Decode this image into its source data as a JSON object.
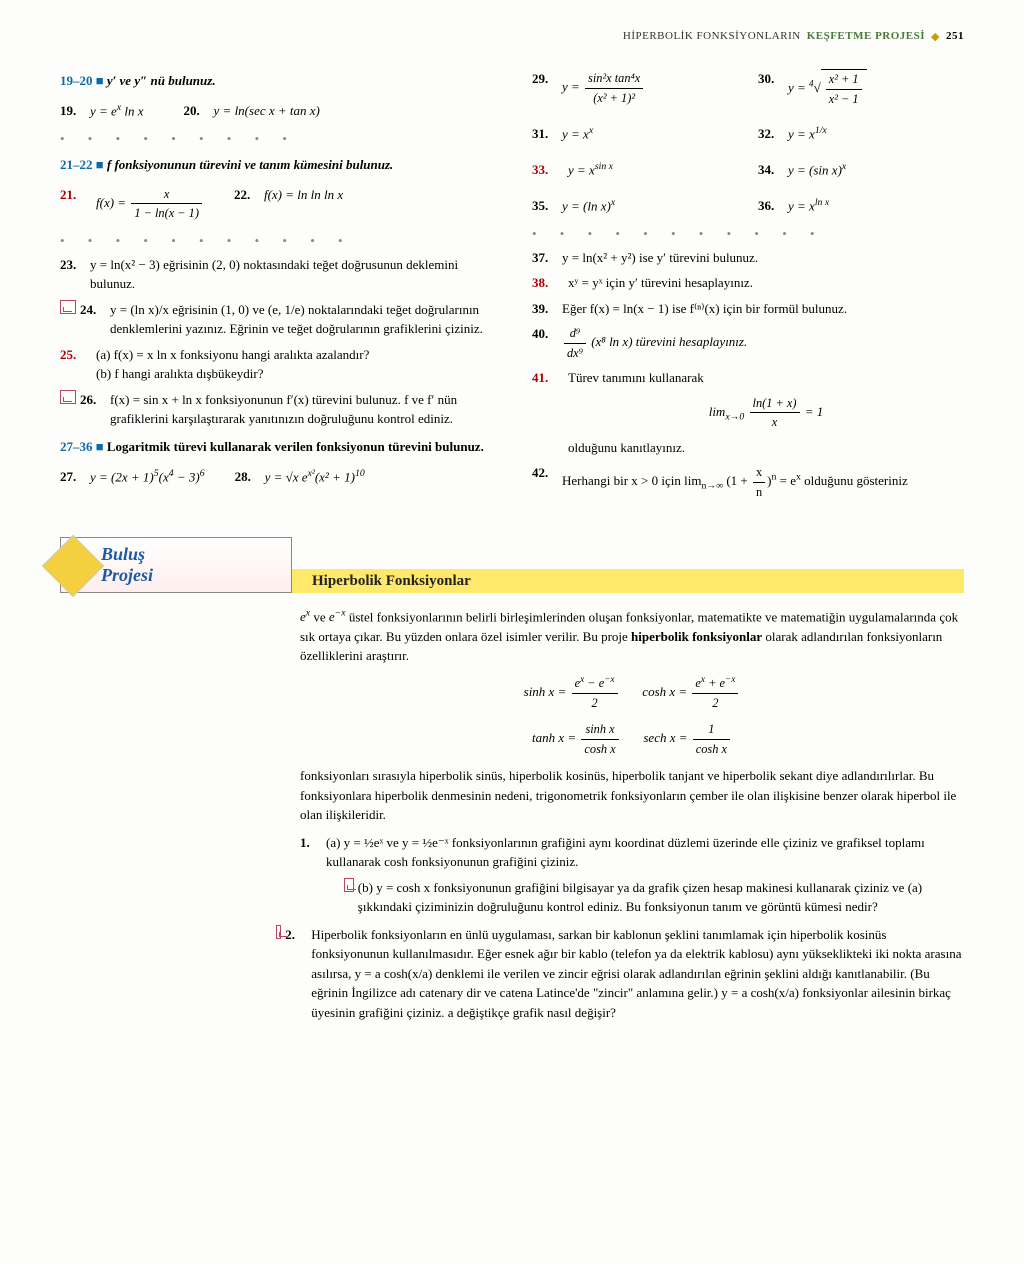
{
  "header": {
    "title": "HİPERBOLİK FONKSİYONLARIN",
    "section": "KEŞFETME PROJESİ",
    "page": "251"
  },
  "range_19_20": "19–20",
  "instr_19_20": "y′ ve y″ nü bulunuz.",
  "p19": {
    "n": "19.",
    "f": "y = eˣ ln x"
  },
  "p20": {
    "n": "20.",
    "f": "y = ln(sec x + tan x)"
  },
  "range_21_22": "21–22",
  "instr_21_22": "f fonksiyonunun türevini ve tanım kümesini bulunuz.",
  "p21": {
    "n": "21.",
    "f": "f(x) = x / (1 − ln(x − 1))"
  },
  "p22": {
    "n": "22.",
    "f": "f(x) = ln ln ln x"
  },
  "p23": {
    "n": "23.",
    "f": "y = ln(x² − 3) eğrisinin (2, 0) noktasındaki teğet doğrusunun deklemini bulunuz."
  },
  "p24": {
    "n": "24.",
    "f": "y = (ln x)/x eğrisinin (1, 0) ve (e, 1/e) noktalarındaki teğet doğrularının denklemlerini yazınız. Eğrinin ve teğet doğrularının grafiklerini çiziniz."
  },
  "p25": {
    "n": "25.",
    "a": "(a) f(x) = x ln x fonksiyonu hangi aralıkta azalandır?",
    "b": "(b) f hangi aralıkta dışbükeydir?"
  },
  "p26": {
    "n": "26.",
    "f": "f(x) = sin x + ln x fonksiyonunun f′(x) türevini bulunuz. f ve f′ nün grafiklerini karşılaştırarak yanıtınızın doğruluğunu kontrol ediniz."
  },
  "range_27_36": "27–36",
  "instr_27_36": "Logaritmik türevi kullanarak verilen fonksiyonun türevini bulunuz.",
  "p27": {
    "n": "27.",
    "f": "y = (2x + 1)⁵(x⁴ − 3)⁶"
  },
  "p28": {
    "n": "28.",
    "f": "y = √x eˣ²(x² + 1)¹⁰"
  },
  "p29": {
    "n": "29.",
    "f": "y = sin²x tan⁴x / (x² + 1)²"
  },
  "p30": {
    "n": "30.",
    "f": "y = ⁴√((x² + 1)/(x² − 1))"
  },
  "p31": {
    "n": "31.",
    "f": "y = xˣ"
  },
  "p32": {
    "n": "32.",
    "f": "y = x^(1/x)"
  },
  "p33": {
    "n": "33.",
    "f": "y = x^(sin x)"
  },
  "p34": {
    "n": "34.",
    "f": "y = (sin x)ˣ"
  },
  "p35": {
    "n": "35.",
    "f": "y = (ln x)ˣ"
  },
  "p36": {
    "n": "36.",
    "f": "y = x^(ln x)"
  },
  "p37": {
    "n": "37.",
    "f": "y = ln(x² + y²) ise y′ türevini bulunuz."
  },
  "p38": {
    "n": "38.",
    "f": "xʸ = yˣ için y′ türevini hesaplayınız."
  },
  "p39": {
    "n": "39.",
    "f": "Eğer f(x) = ln(x − 1) ise f⁽ⁿ⁾(x) için bir formül bulunuz."
  },
  "p40": {
    "n": "40.",
    "f": "d⁹/dx⁹ (x⁸ ln x) türevini hesaplayınız."
  },
  "p41": {
    "n": "41.",
    "f": "Türev tanımını kullanarak",
    "lim": "lim(x→0) ln(1 + x)/x = 1",
    "tail": "olduğunu kanıtlayınız."
  },
  "p42": {
    "n": "42.",
    "f": "Herhangi bir x > 0 için lim(n→∞) (1 + x/n)ⁿ = eˣ olduğunu gösteriniz"
  },
  "project": {
    "box_l1": "Buluş",
    "box_l2": "Projesi",
    "title": "Hiperbolik Fonksiyonlar",
    "intro": "eˣ ve e⁻ˣ üstel fonksiyonlarının belirli birleşimlerinden oluşan fonksiyonlar, matematikte ve matematiğin uygulamalarında çok sık ortaya çıkar. Bu yüzden onlara özel isimler verilir. Bu proje hiperbolik fonksiyonlar olarak adlandırılan fonksiyonların özelliklerini araştırır.",
    "form1": "sinh x = (eˣ − e⁻ˣ)/2        cosh x = (eˣ + e⁻ˣ)/2",
    "form2": "tanh x = sinh x / cosh x        sech x = 1 / cosh x",
    "para2": "fonksiyonları sırasıyla hiperbolik sinüs, hiperbolik kosinüs, hiperbolik tanjant ve hiperbolik sekant diye adlandırılırlar. Bu fonksiyonlara hiperbolik denmesinin nedeni, trigonometrik fonksiyonların çember ile olan ilişkisine benzer olarak hiperbol ile olan ilişkileridir.",
    "q1a": "(a) y = ½eˣ ve y = ½e⁻ˣ fonksiyonlarının grafiğini aynı koordinat düzlemi üzerinde elle çiziniz ve grafiksel toplamı kullanarak cosh fonksiyonunun grafiğini çiziniz.",
    "q1b": "(b) y = cosh x fonksiyonunun grafiğini bilgisayar ya da grafik çizen hesap makinesi kullanarak çiziniz ve (a) şıkkındaki çiziminizin doğruluğunu kontrol ediniz. Bu fonksiyonun tanım ve görüntü kümesi nedir?",
    "q2": "Hiperbolik fonksiyonların en ünlü uygulaması, sarkan bir kablonun şeklini tanımlamak için hiperbolik kosinüs fonksiyonunun kullanılmasıdır. Eğer esnek ağır bir kablo (telefon ya da elektrik kablosu) aynı yükseklikteki iki nokta arasına asılırsa, y = a cosh(x/a) denklemi ile verilen ve zincir eğrisi olarak adlandırılan eğrinin şeklini aldığı kanıtlanabilir. (Bu eğrinin İngilizce adı catenary dir ve catena Latince'de \"zincir\" anlamına gelir.) y = a cosh(x/a) fonksiyonlar ailesinin birkaç üyesinin grafiğini çiziniz. a değiştikçe grafik nasıl değişir?"
  },
  "colors": {
    "red": "#a00",
    "blue": "#0b6aa6",
    "yellow": "#ffe96b",
    "projblue": "#1a5aa6"
  }
}
